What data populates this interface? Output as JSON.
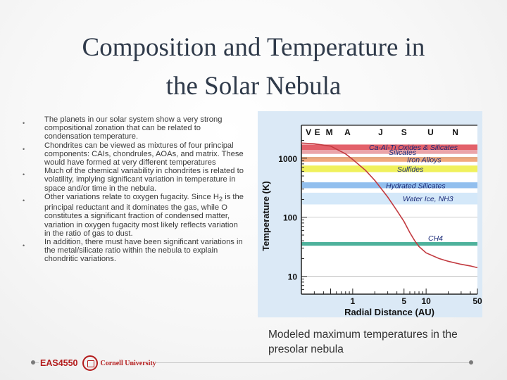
{
  "slide": {
    "title_line1": "Composition and Temperature in",
    "title_line2": "the Solar Nebula",
    "bullets": [
      "The planets in our solar system show a very strong compositional zonation that can be related to condensation temperature.",
      "Chondrites can be viewed as mixtures of four principal components: CAIs, chondrules, AOAs, and matrix. These would have formed at very different temperatures",
      "Much of the chemical variability in chondrites is related to volatility, implying significant variation in temperature in space and/or time in the nebula.",
      "Other variations relate to oxygen fugacity. Since H2 is the principal reductant and it dominates the gas, while O constitutes a significant fraction of condensed matter, variation in oxygen fugacity most likely reflects variation in the ratio of gas to dust.",
      "In addition, there must have been significant variations in the metal/silicate ratio within the nebula to explain chondritic variations."
    ],
    "caption": "Modeled maximum temperatures in the presolar nebula"
  },
  "footer": {
    "course_logo_text": "EAS4550",
    "university_logo_text": "Cornell University"
  },
  "chart_data": {
    "type": "line",
    "title": "",
    "xlabel": "Radial Distance (AU)",
    "ylabel": "Temperature (K)",
    "x_scale": "log",
    "y_scale": "log",
    "xlim": [
      0.2,
      50
    ],
    "ylim": [
      5,
      2200
    ],
    "x_ticks": [
      1,
      5,
      10,
      50
    ],
    "x_tick_labels": [
      "1",
      "5",
      "10",
      "50"
    ],
    "y_ticks": [
      10,
      100,
      1000
    ],
    "y_tick_labels": [
      "10",
      "100",
      "1000"
    ],
    "planet_labels": [
      {
        "label": "V",
        "x": 0.25
      },
      {
        "label": "E",
        "x": 0.33
      },
      {
        "label": "M",
        "x": 0.48
      },
      {
        "label": "A",
        "x": 0.85
      },
      {
        "label": "J",
        "x": 2.4
      },
      {
        "label": "S",
        "x": 5.0
      },
      {
        "label": "U",
        "x": 11.5
      },
      {
        "label": "N",
        "x": 25
      }
    ],
    "condensation_bands": [
      {
        "label": "Ca-Al-Ti Oxides & Silicates",
        "t_low": 1380,
        "t_high": 1700,
        "color": "#e0505a"
      },
      {
        "label": "Silicates",
        "t_low": 1180,
        "t_high": 1380,
        "color": "#e89aa0"
      },
      {
        "label": "Iron Alloys",
        "t_low": 870,
        "t_high": 1050,
        "color": "#f0a070"
      },
      {
        "label": "Sulfides",
        "t_low": 580,
        "t_high": 750,
        "color": "#eef04a"
      },
      {
        "label": "Hydrated Silicates",
        "t_low": 310,
        "t_high": 390,
        "color": "#86b8ec"
      },
      {
        "label": "Water Ice, NH3",
        "t_low": 165,
        "t_high": 260,
        "color": "#cfe6f8"
      },
      {
        "label": "CH4",
        "t_low": 33,
        "t_high": 38,
        "color": "#3aa890"
      }
    ],
    "series": [
      {
        "x": [
          0.2,
          0.3,
          0.5,
          0.8,
          1.0,
          1.5,
          2.0,
          3.0,
          4.0,
          5.0,
          6.0,
          7.0,
          8.0,
          10,
          15,
          20,
          30,
          40,
          50
        ],
        "y": [
          1800,
          1750,
          1600,
          1180,
          950,
          620,
          420,
          220,
          130,
          85,
          55,
          40,
          32,
          25,
          20,
          18,
          16,
          15,
          14
        ],
        "color": "#c23a40"
      }
    ]
  }
}
